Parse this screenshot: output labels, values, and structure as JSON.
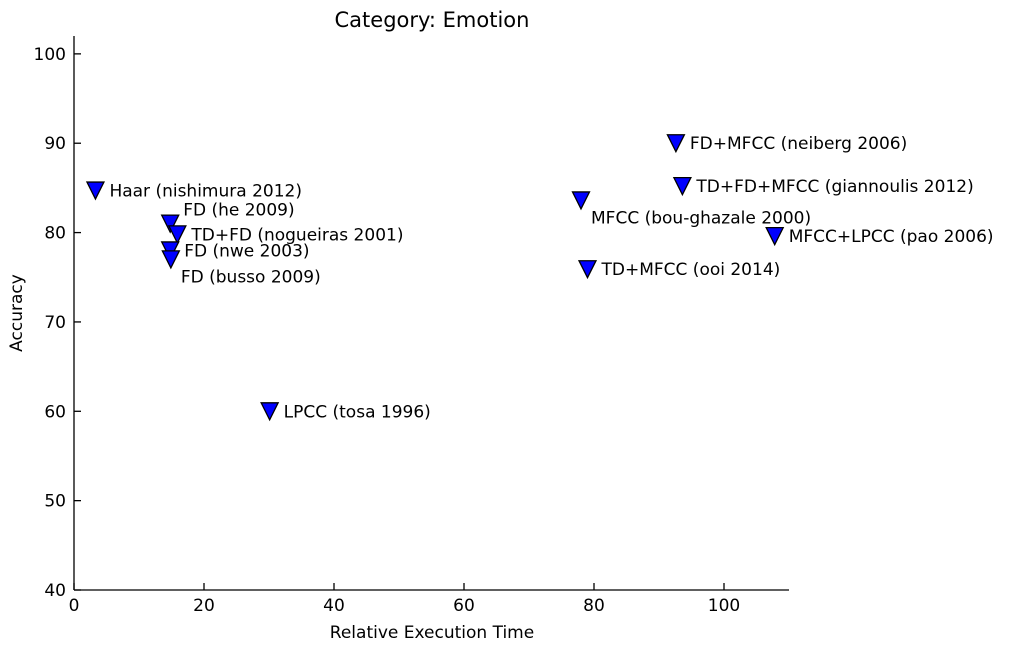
{
  "chart_data": {
    "type": "scatter",
    "title": "Category: Emotion",
    "xlabel": "Relative Execution Time",
    "ylabel": "Accuracy",
    "xlim": [
      0,
      110
    ],
    "ylim": [
      40,
      102
    ],
    "xticks": [
      0,
      20,
      40,
      60,
      80,
      100
    ],
    "yticks": [
      40,
      50,
      60,
      70,
      80,
      90,
      100
    ],
    "marker": "triangle-down",
    "marker_color": "#0000ff",
    "grid": false,
    "points": [
      {
        "x": 3.3,
        "y": 84.7,
        "label": "Haar (nishimura 2012)",
        "label_pos": "right"
      },
      {
        "x": 14.8,
        "y": 81.0,
        "label": "FD (he 2009)",
        "label_pos": "above-right"
      },
      {
        "x": 15.9,
        "y": 79.8,
        "label": "TD+FD (nogueiras 2001)",
        "label_pos": "right"
      },
      {
        "x": 14.8,
        "y": 78.0,
        "label": "FD (nwe 2003)",
        "label_pos": "right"
      },
      {
        "x": 14.9,
        "y": 77.0,
        "label": "FD (busso 2009)",
        "label_pos": "below-right"
      },
      {
        "x": 30.1,
        "y": 60.0,
        "label": "LPCC (tosa 1996)",
        "label_pos": "right"
      },
      {
        "x": 78.0,
        "y": 83.6,
        "label": "MFCC (bou-ghazale 2000)",
        "label_pos": "below-right"
      },
      {
        "x": 79.0,
        "y": 75.9,
        "label": "TD+MFCC (ooi 2014)",
        "label_pos": "right"
      },
      {
        "x": 92.6,
        "y": 90.0,
        "label": "FD+MFCC (neiberg 2006)",
        "label_pos": "right"
      },
      {
        "x": 93.6,
        "y": 85.2,
        "label": "TD+FD+MFCC (giannoulis 2012)",
        "label_pos": "right"
      },
      {
        "x": 107.8,
        "y": 79.6,
        "label": "MFCC+LPCC (pao 2006)",
        "label_pos": "right"
      }
    ]
  }
}
